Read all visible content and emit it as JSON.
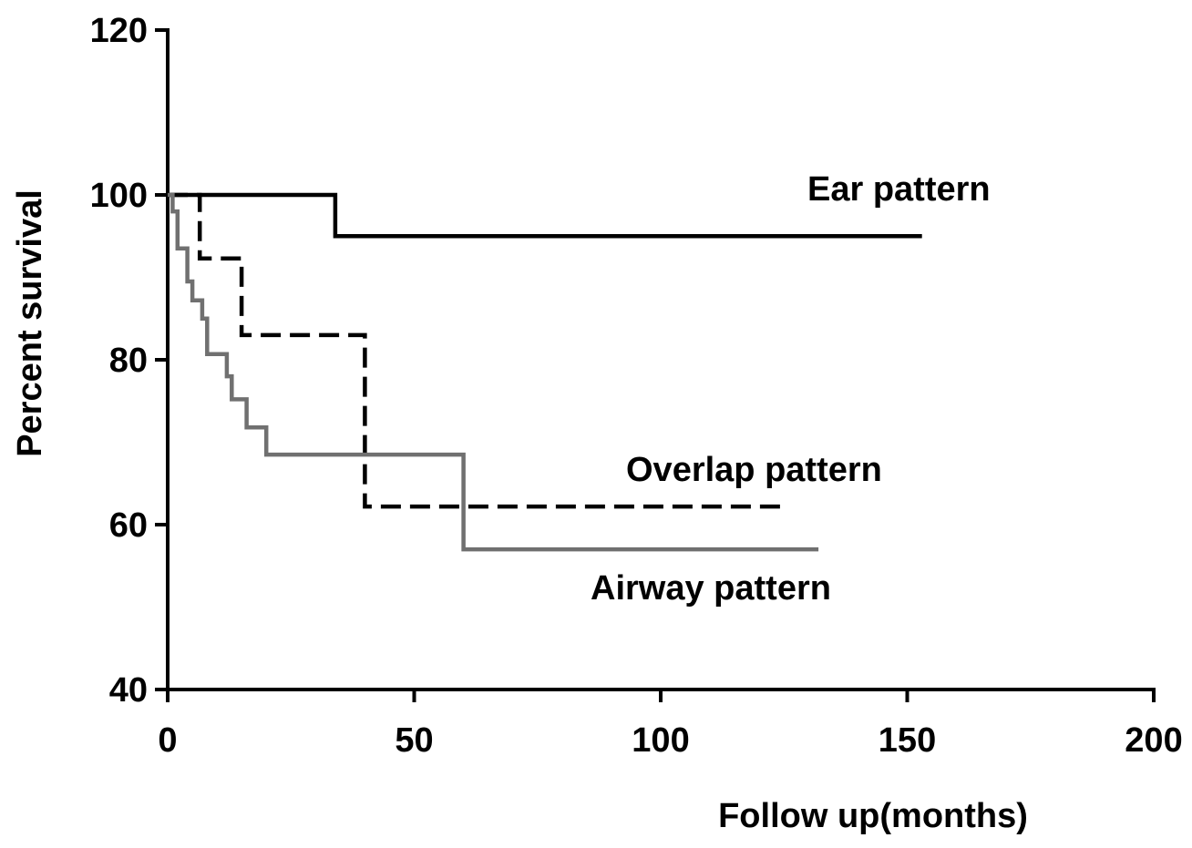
{
  "chart_data": {
    "type": "line",
    "step": true,
    "title": "",
    "xlabel": "Follow up(months)",
    "ylabel": "Percent survival",
    "xlim": [
      0,
      200
    ],
    "ylim": [
      40,
      120
    ],
    "xticks": [
      0,
      50,
      100,
      150,
      200
    ],
    "yticks": [
      40,
      60,
      80,
      100,
      120
    ],
    "xtick_labels": [
      "0",
      "50",
      "100",
      "150",
      "200"
    ],
    "ytick_labels": [
      "40",
      "60",
      "80",
      "100",
      "120"
    ],
    "grid": false,
    "legend": "none",
    "series": [
      {
        "name": "Ear pattern",
        "color": "#000000",
        "style": "solid",
        "x": [
          0,
          34,
          34,
          153
        ],
        "y": [
          100,
          100,
          95,
          95
        ]
      },
      {
        "name": "Overlap pattern",
        "color": "#000000",
        "style": "dashed",
        "x": [
          0,
          6.5,
          6.5,
          15,
          15,
          40,
          40,
          125
        ],
        "y": [
          100,
          100,
          92.3,
          92.3,
          83,
          83,
          62.2,
          62.2
        ]
      },
      {
        "name": "Airway pattern",
        "color": "#707070",
        "style": "solid",
        "x": [
          0,
          1,
          1,
          2,
          2,
          4,
          4,
          5,
          5,
          7,
          7,
          8,
          8,
          12,
          12,
          13,
          13,
          16,
          16,
          20,
          20,
          60,
          60,
          132
        ],
        "y": [
          100,
          100,
          98,
          98,
          93.5,
          93.5,
          89.5,
          89.5,
          87.2,
          87.2,
          85,
          85,
          80.7,
          80.7,
          78,
          78,
          75.2,
          75.2,
          71.8,
          71.8,
          68.5,
          68.5,
          57,
          57
        ]
      }
    ]
  }
}
